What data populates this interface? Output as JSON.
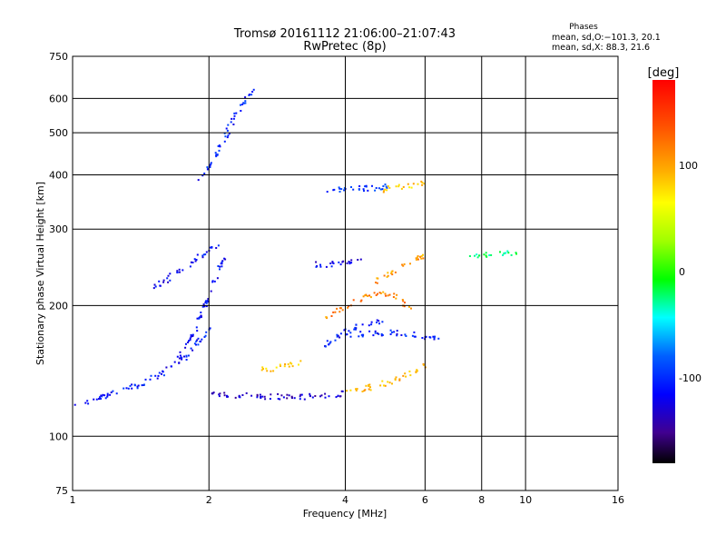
{
  "chart_data": {
    "type": "scatter",
    "title": "Tromsø 20161112 21:06:00–21:07:43",
    "subtitle": "RwPretec (8p)",
    "xlabel": "Frequency [MHz]",
    "ylabel": "Stationary phase Virtual Height [km]",
    "x_scale": "log",
    "y_scale": "log",
    "xlim": [
      1,
      16
    ],
    "ylim": [
      75,
      750
    ],
    "x_ticks": [
      1,
      2,
      4,
      6,
      8,
      10,
      16
    ],
    "y_ticks": [
      75,
      100,
      200,
      300,
      400,
      500,
      600,
      750
    ],
    "grid": true,
    "phase_legend": {
      "title": "Phases",
      "line1": "mean, sd,O:−101.3, 20.1",
      "line2": "mean, sd,X:  88.3, 21.6"
    },
    "colorbar": {
      "label": "[deg]",
      "range": [
        -180,
        180
      ],
      "ticks": [
        100,
        0,
        -100
      ]
    },
    "traces": [
      {
        "freq": [
          1.0,
          1.2,
          1.4,
          1.6,
          1.8,
          2.0
        ],
        "height": [
          118,
          125,
          132,
          142,
          155,
          180
        ],
        "phase": -110
      },
      {
        "freq": [
          1.9,
          2.0,
          2.1,
          2.2,
          2.3,
          2.4,
          2.5
        ],
        "height": [
          390,
          420,
          460,
          510,
          560,
          600,
          630
        ],
        "phase": -105
      },
      {
        "freq": [
          2.0,
          2.3,
          2.7,
          3.0,
          3.3,
          3.7,
          4.0
        ],
        "height": [
          126,
          125,
          124,
          124,
          124,
          125,
          126
        ],
        "phase": -130
      },
      {
        "freq": [
          2.6,
          2.8,
          3.0,
          3.2
        ],
        "height": [
          143,
          144,
          146,
          150
        ],
        "phase": 90
      },
      {
        "freq": [
          4.0,
          4.5,
          5.0,
          5.5,
          6.0
        ],
        "height": [
          126,
          130,
          134,
          140,
          146
        ],
        "phase": 100
      },
      {
        "freq": [
          4.0,
          4.5,
          5.0,
          5.5,
          6.0,
          6.5
        ],
        "height": [
          172,
          173,
          174,
          173,
          170,
          167
        ],
        "phase": -110
      },
      {
        "freq": [
          3.6,
          4.0,
          4.5,
          5.0
        ],
        "height": [
          370,
          372,
          374,
          378
        ],
        "phase": -100
      },
      {
        "freq": [
          4.8,
          5.2,
          5.6,
          6.0
        ],
        "height": [
          372,
          375,
          380,
          385
        ],
        "phase": 90
      },
      {
        "freq": [
          3.4,
          3.7,
          4.0,
          4.4
        ],
        "height": [
          250,
          250,
          252,
          255
        ],
        "phase": -120
      },
      {
        "freq": [
          4.6,
          5.0,
          5.4,
          5.8,
          6.0
        ],
        "height": [
          228,
          238,
          248,
          258,
          264
        ],
        "phase": 110
      },
      {
        "freq": [
          7.5,
          8.0,
          8.5,
          9.0,
          9.5
        ],
        "height": [
          262,
          263,
          264,
          265,
          265
        ],
        "phase": -20
      },
      {
        "freq": [
          3.6,
          4.0,
          4.4,
          4.8,
          5.2,
          5.6
        ],
        "height": [
          190,
          200,
          210,
          215,
          210,
          195
        ],
        "phase": 120
      },
      {
        "freq": [
          3.5,
          3.8,
          4.1,
          4.4,
          4.8
        ],
        "height": [
          160,
          170,
          178,
          182,
          185
        ],
        "phase": -110
      },
      {
        "freq": [
          1.5,
          1.7,
          1.9,
          2.0,
          2.1
        ],
        "height": [
          220,
          240,
          260,
          270,
          280
        ],
        "phase": -115
      },
      {
        "freq": [
          1.7,
          1.85,
          1.95,
          2.05,
          2.15
        ],
        "height": [
          150,
          175,
          200,
          230,
          260
        ],
        "phase": -115
      }
    ]
  }
}
